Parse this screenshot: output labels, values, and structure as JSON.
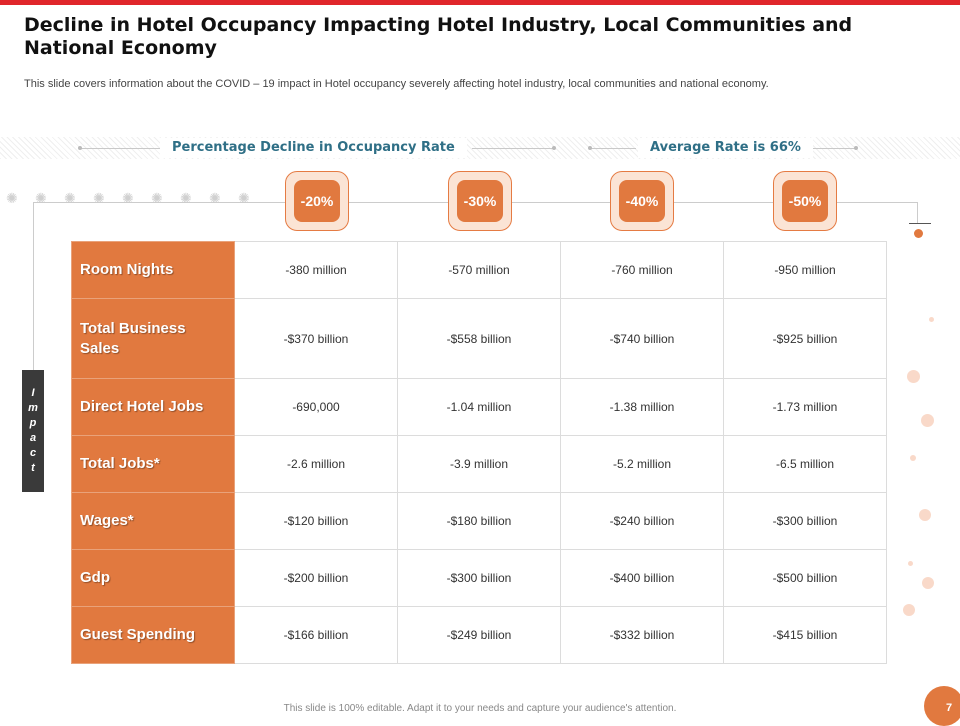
{
  "header": {
    "title": "Decline in Hotel Occupancy Impacting Hotel Industry, Local Communities and National Economy",
    "subtitle": "This slide covers information about the COVID – 19 impact in Hotel occupancy severely affecting hotel industry, local communities and national economy."
  },
  "labels": {
    "decline": "Percentage Decline in Occupancy Rate",
    "average": "Average Rate is 66%"
  },
  "badges": [
    "-20%",
    "-30%",
    "-40%",
    "-50%"
  ],
  "impact_letters": [
    "I",
    "m",
    "p",
    "a",
    "c",
    "t"
  ],
  "table": {
    "rows": [
      {
        "label": "Room Nights",
        "values": [
          "-380 million",
          "-570 million",
          "-760 million",
          "-950 million"
        ]
      },
      {
        "label": "Total Business Sales",
        "values": [
          "-$370 billion",
          "-$558 billion",
          "-$740 billion",
          "-$925 billion"
        ]
      },
      {
        "label": "Direct Hotel Jobs",
        "values": [
          "-690,000",
          "-1.04 million",
          "-1.38 million",
          "-1.73 million"
        ]
      },
      {
        "label": "Total Jobs*",
        "values": [
          "-2.6 million",
          "-3.9 million",
          "-5.2 million",
          "-6.5 million"
        ]
      },
      {
        "label": "Wages*",
        "values": [
          "-$120 billion",
          "-$180 billion",
          "-$240 billion",
          "-$300 billion"
        ]
      },
      {
        "label": "Gdp",
        "values": [
          "-$200 billion",
          "-$300 billion",
          "-$400 billion",
          "-$500 billion"
        ]
      },
      {
        "label": "Guest Spending",
        "values": [
          "-$166 billion",
          "-$249 billion",
          "-$332 billion",
          "-$415 billion"
        ]
      }
    ]
  },
  "footer": {
    "note": "This slide is 100% editable. Adapt it to your needs and capture your audience's attention.",
    "page": "7"
  },
  "colors": {
    "accent": "#e1793f",
    "title_teal": "#2f6f86",
    "top_bar": "#e0262b",
    "impact_bar": "#3a3a3a"
  }
}
